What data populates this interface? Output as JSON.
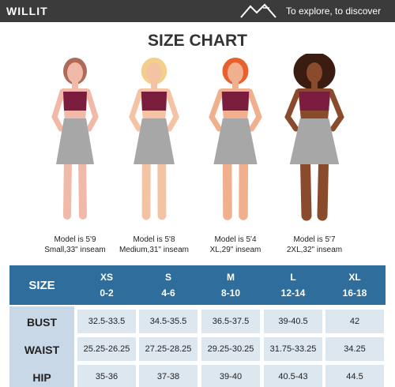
{
  "header": {
    "brand": "WILLIT",
    "tagline": "To explore, to discover"
  },
  "title": "SIZE CHART",
  "models": [
    {
      "height": "Model is 5'9",
      "info": "Small,33\" inseam"
    },
    {
      "height": "Model is 5'8",
      "info": "Medium,31\" inseam"
    },
    {
      "height": "Model is 5'4",
      "info": "XL,29\" inseam"
    },
    {
      "height": "Model is 5'7",
      "info": "2XL,32\" inseam"
    }
  ],
  "table": {
    "size_label": "SIZE",
    "sizes": [
      {
        "name": "XS",
        "range": "0-2"
      },
      {
        "name": "S",
        "range": "4-6"
      },
      {
        "name": "M",
        "range": "8-10"
      },
      {
        "name": "L",
        "range": "12-14"
      },
      {
        "name": "XL",
        "range": "16-18"
      }
    ],
    "rows": [
      {
        "label": "BUST",
        "values": [
          "32.5-33.5",
          "34.5-35.5",
          "36.5-37.5",
          "39-40.5",
          "42"
        ]
      },
      {
        "label": "WAIST",
        "values": [
          "25.25-26.25",
          "27.25-28.25",
          "29.25-30.25",
          "31.75-33.25",
          "34.25"
        ]
      },
      {
        "label": "HIP",
        "values": [
          "35-36",
          "37-38",
          "39-40",
          "40.5-43",
          "44.5"
        ]
      }
    ]
  }
}
